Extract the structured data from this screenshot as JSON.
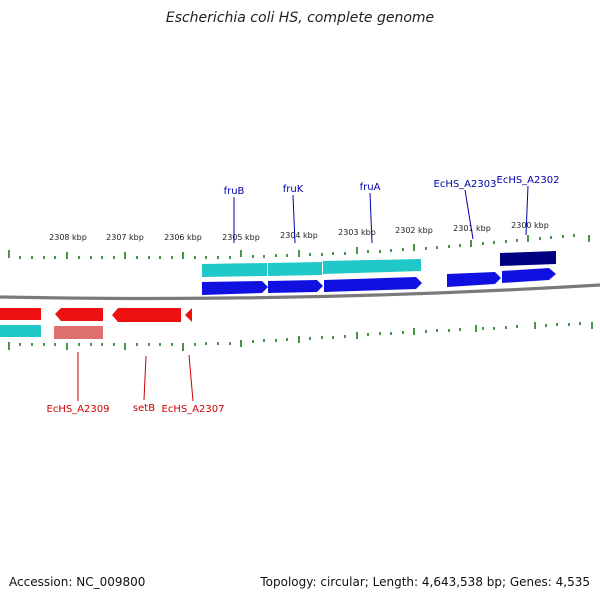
{
  "title": "Escherichia coli HS, complete genome",
  "footer": {
    "accession": "Accession: NC_009800",
    "topology": "Topology: circular; Length: 4,643,538 bp; Genes: 4,535"
  },
  "kbp_labels": [
    "2308 kbp",
    "2307 kbp",
    "2306 kbp",
    "2305 kbp",
    "2304 kbp",
    "2303 kbp",
    "2302 kbp",
    "2301 kbp",
    "2300 kbp"
  ],
  "gene_labels_top": [
    "fruB",
    "fruK",
    "fruA",
    "EcHS_A2303",
    "EcHS_A2302"
  ],
  "gene_labels_bottom": [
    "EcHS_A2309",
    "setB",
    "EcHS_A2307"
  ],
  "colors": {
    "forward_gene": "#1010e0",
    "forward_cds": "#20c8c8",
    "forward_dark": "#000080",
    "reverse_gene": "#ee1111",
    "reverse_cds_light": "#e07070",
    "backbone": "#7a7a7a",
    "ticks": "#1a7a1a",
    "label_forward": "#0000aa",
    "label_reverse": "#cc0000"
  }
}
